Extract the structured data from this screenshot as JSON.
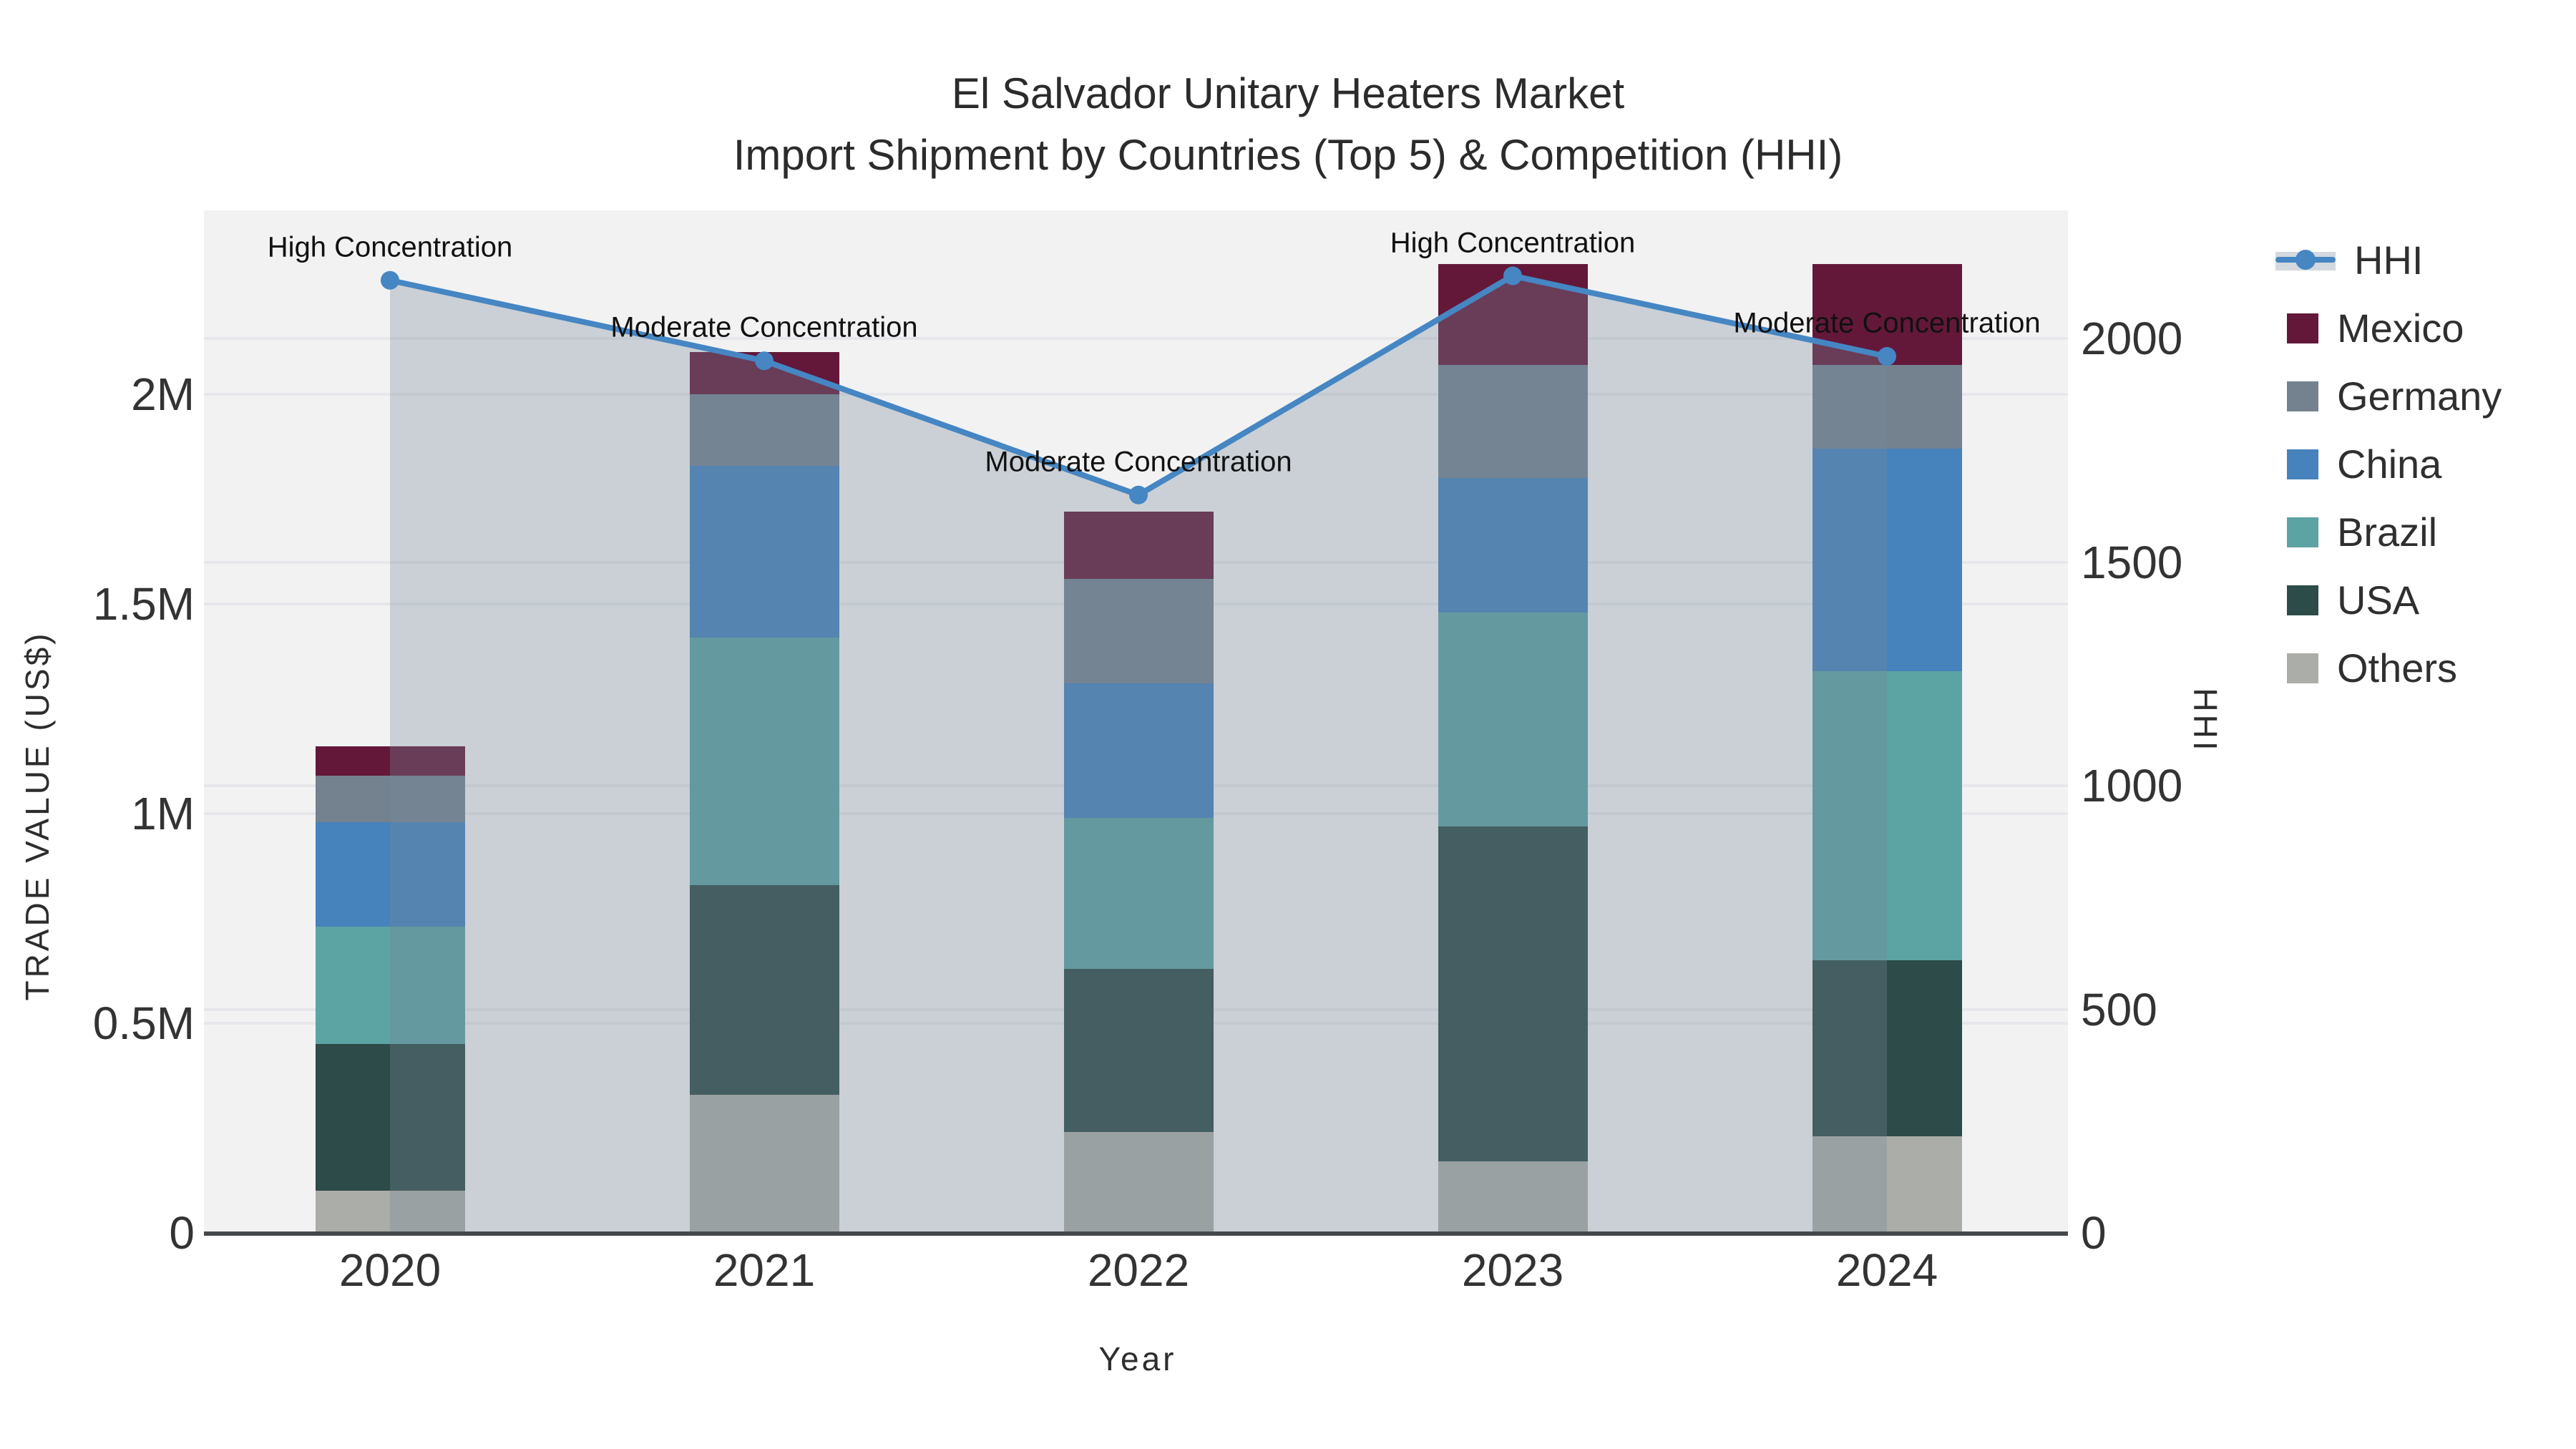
{
  "title": {
    "line1": "El Salvador Unitary Heaters Market",
    "line2": "Import Shipment by Countries (Top 5) & Competition (HHI)"
  },
  "colors": {
    "hhi_line": "#4586c3",
    "hhi_fill": "rgba(119,136,153,0.32)",
    "plot_bg": "#f2f2f3",
    "gridline": "#e6e7ea",
    "axis_line": "#45484b"
  },
  "chart_data": {
    "type": "combo (stacked bar + area line)",
    "categories": [
      "2020",
      "2021",
      "2022",
      "2023",
      "2024"
    ],
    "bar_unit": "US$ millions",
    "series": [
      {
        "name": "Others",
        "color": "#abada9",
        "values": [
          0.1,
          0.33,
          0.24,
          0.17,
          0.23
        ]
      },
      {
        "name": "USA",
        "color": "#2d4b48",
        "values": [
          0.35,
          0.5,
          0.39,
          0.8,
          0.42
        ]
      },
      {
        "name": "Brazil",
        "color": "#5ca3a3",
        "values": [
          0.28,
          0.59,
          0.36,
          0.51,
          0.69
        ]
      },
      {
        "name": "China",
        "color": "#4682bb",
        "values": [
          0.25,
          0.41,
          0.32,
          0.32,
          0.53
        ]
      },
      {
        "name": "Germany",
        "color": "#74828f",
        "values": [
          0.11,
          0.17,
          0.25,
          0.27,
          0.2
        ]
      },
      {
        "name": "Mexico",
        "color": "#63183a",
        "values": [
          0.07,
          0.1,
          0.16,
          0.24,
          0.24
        ]
      }
    ],
    "line": {
      "name": "HHI",
      "values": [
        2130,
        1950,
        1650,
        2140,
        1960
      ],
      "fill": "tozeroy"
    },
    "annotations": [
      {
        "category_index": 0,
        "text": "High Concentration"
      },
      {
        "category_index": 1,
        "text": "Moderate Concentration"
      },
      {
        "category_index": 2,
        "text": "Moderate Concentration"
      },
      {
        "category_index": 3,
        "text": "High Concentration"
      },
      {
        "category_index": 4,
        "text": "Moderate Concentration"
      }
    ],
    "axes": {
      "left": {
        "title": "TRADE VALUE (US$)",
        "ticks": [
          {
            "label": "0",
            "value": 0
          },
          {
            "label": "0.5M",
            "value": 0.5
          },
          {
            "label": "1M",
            "value": 1.0
          },
          {
            "label": "1.5M",
            "value": 1.5
          },
          {
            "label": "2M",
            "value": 2.0
          }
        ],
        "range": [
          0,
          2.44
        ]
      },
      "right": {
        "title": "HHI",
        "ticks": [
          {
            "label": "0",
            "value": 0
          },
          {
            "label": "500",
            "value": 500
          },
          {
            "label": "1000",
            "value": 1000
          },
          {
            "label": "1500",
            "value": 1500
          },
          {
            "label": "2000",
            "value": 2000
          }
        ],
        "range": [
          0,
          2286
        ]
      },
      "x": {
        "title": "Year"
      }
    },
    "legend_order": [
      "HHI",
      "Mexico",
      "Germany",
      "China",
      "Brazil",
      "USA",
      "Others"
    ],
    "grid": true,
    "legend_position": "right"
  }
}
